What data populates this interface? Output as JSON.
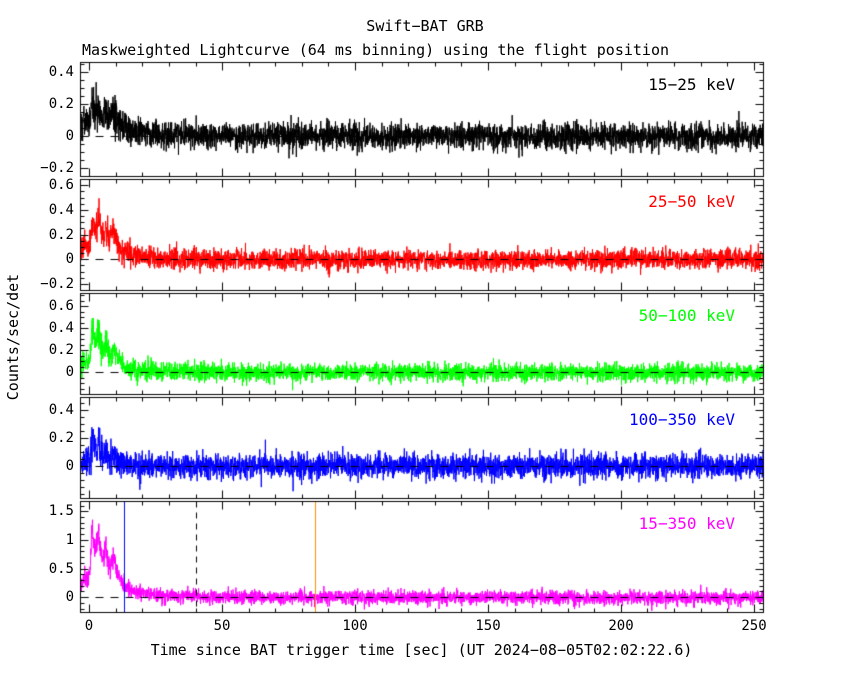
{
  "window": {
    "background": "#ffffff"
  },
  "chart_data": {
    "type": "line",
    "title": "Swift−BAT GRB",
    "subtitle": "Maskweighted Lightcurve (64 ms binning) using the flight position",
    "xlabel": "Time since BAT trigger time [sec] (UT 2024−08−05T02:02:22.6)",
    "ylabel": "Counts/sec/det",
    "xlim": [
      -3.5,
      253.5
    ],
    "xticks": [
      0,
      50,
      100,
      150,
      200,
      250
    ],
    "x_minor_step": 10,
    "bin_sec": 0.064,
    "grid": false,
    "legend_position": "inside-top-right-per-panel",
    "panels": [
      {
        "band": "15−25 keV",
        "color": "#000000",
        "ylim": [
          -0.25,
          0.46
        ],
        "yticks": [
          -0.2,
          0,
          0.2,
          0.4
        ],
        "y_minor_step": 0.05,
        "zero_dashed_line": 0,
        "noise_sigma": 0.04,
        "flicker": 3.0,
        "seed": 101,
        "pulses": [
          {
            "t0": -2.0,
            "rise": 3.0,
            "decay": 3.0,
            "amp": 0.1
          },
          {
            "t0": 0.8,
            "rise": 0.6,
            "decay": 2.2,
            "amp": 0.16
          },
          {
            "t0": 3.2,
            "rise": 0.8,
            "decay": 2.5,
            "amp": 0.12
          },
          {
            "t0": 6.0,
            "rise": 0.8,
            "decay": 2.5,
            "amp": 0.1
          },
          {
            "t0": 8.8,
            "rise": 0.6,
            "decay": 2.0,
            "amp": 0.1
          },
          {
            "t0": 12.0,
            "rise": 4.0,
            "decay": 18.0,
            "amp": 0.045
          }
        ]
      },
      {
        "band": "25−50 keV",
        "color": "#ff0000",
        "ylim": [
          -0.25,
          0.65
        ],
        "yticks": [
          -0.2,
          0,
          0.2,
          0.4,
          0.6
        ],
        "y_minor_step": 0.05,
        "zero_dashed_line": 0,
        "noise_sigma": 0.04,
        "flicker": 2.2,
        "seed": 202,
        "pulses": [
          {
            "t0": -2.0,
            "rise": 3.0,
            "decay": 3.0,
            "amp": 0.12
          },
          {
            "t0": 0.8,
            "rise": 0.6,
            "decay": 2.2,
            "amp": 0.3
          },
          {
            "t0": 3.2,
            "rise": 0.8,
            "decay": 2.5,
            "amp": 0.2
          },
          {
            "t0": 6.0,
            "rise": 0.8,
            "decay": 2.5,
            "amp": 0.15
          },
          {
            "t0": 8.8,
            "rise": 0.6,
            "decay": 2.0,
            "amp": 0.14
          },
          {
            "t0": 12.0,
            "rise": 4.0,
            "decay": 15.0,
            "amp": 0.04
          }
        ]
      },
      {
        "band": "50−100 keV",
        "color": "#00ff00",
        "ylim": [
          -0.2,
          0.72
        ],
        "yticks": [
          0,
          0.2,
          0.4,
          0.6
        ],
        "y_minor_step": 0.05,
        "zero_dashed_line": 0,
        "noise_sigma": 0.04,
        "flicker": 2.0,
        "seed": 303,
        "pulses": [
          {
            "t0": -2.0,
            "rise": 3.0,
            "decay": 2.5,
            "amp": 0.1
          },
          {
            "t0": 0.8,
            "rise": 0.5,
            "decay": 2.0,
            "amp": 0.42
          },
          {
            "t0": 3.2,
            "rise": 0.7,
            "decay": 2.2,
            "amp": 0.26
          },
          {
            "t0": 6.0,
            "rise": 0.7,
            "decay": 2.2,
            "amp": 0.18
          },
          {
            "t0": 8.8,
            "rise": 0.5,
            "decay": 1.8,
            "amp": 0.16
          },
          {
            "t0": 12.0,
            "rise": 4.0,
            "decay": 12.0,
            "amp": 0.035
          }
        ]
      },
      {
        "band": "100−350 keV",
        "color": "#0000ff",
        "ylim": [
          -0.23,
          0.49
        ],
        "yticks": [
          0,
          0.2,
          0.4
        ],
        "y_minor_step": 0.05,
        "zero_dashed_line": 0,
        "noise_sigma": 0.045,
        "flicker": 2.8,
        "seed": 404,
        "pulses": [
          {
            "t0": -2.0,
            "rise": 2.5,
            "decay": 2.0,
            "amp": 0.04
          },
          {
            "t0": 0.8,
            "rise": 0.4,
            "decay": 1.4,
            "amp": 0.24
          },
          {
            "t0": 3.2,
            "rise": 0.5,
            "decay": 1.5,
            "amp": 0.14
          },
          {
            "t0": 6.0,
            "rise": 0.5,
            "decay": 1.5,
            "amp": 0.09
          },
          {
            "t0": 8.8,
            "rise": 0.4,
            "decay": 1.2,
            "amp": 0.08
          },
          {
            "t0": 12.0,
            "rise": 4.0,
            "decay": 8.0,
            "amp": 0.012
          }
        ]
      },
      {
        "band": "15−350 keV",
        "color": "#ff00ff",
        "ylim": [
          -0.26,
          1.68
        ],
        "yticks": [
          0,
          0.5,
          1,
          1.5
        ],
        "y_minor_step": 0.1,
        "zero_dashed_line": 0,
        "noise_sigma": 0.06,
        "flicker": 1.0,
        "seed": 505,
        "pulses": [
          {
            "t0": -2.0,
            "rise": 3.0,
            "decay": 3.0,
            "amp": 0.35
          },
          {
            "t0": 0.8,
            "rise": 0.6,
            "decay": 2.2,
            "amp": 1.05
          },
          {
            "t0": 3.2,
            "rise": 0.8,
            "decay": 2.5,
            "amp": 0.7
          },
          {
            "t0": 6.0,
            "rise": 0.8,
            "decay": 2.5,
            "amp": 0.5
          },
          {
            "t0": 8.8,
            "rise": 0.6,
            "decay": 2.0,
            "amp": 0.46
          },
          {
            "t0": 12.0,
            "rise": 4.0,
            "decay": 14.0,
            "amp": 0.13
          }
        ],
        "vlines": [
          {
            "t": 13,
            "color": "#0000ff",
            "style": "solid"
          },
          {
            "t": 40,
            "color": "#000000",
            "style": "dashed"
          },
          {
            "t": 85,
            "color": "#ff8c00",
            "style": "solid"
          }
        ]
      }
    ]
  }
}
